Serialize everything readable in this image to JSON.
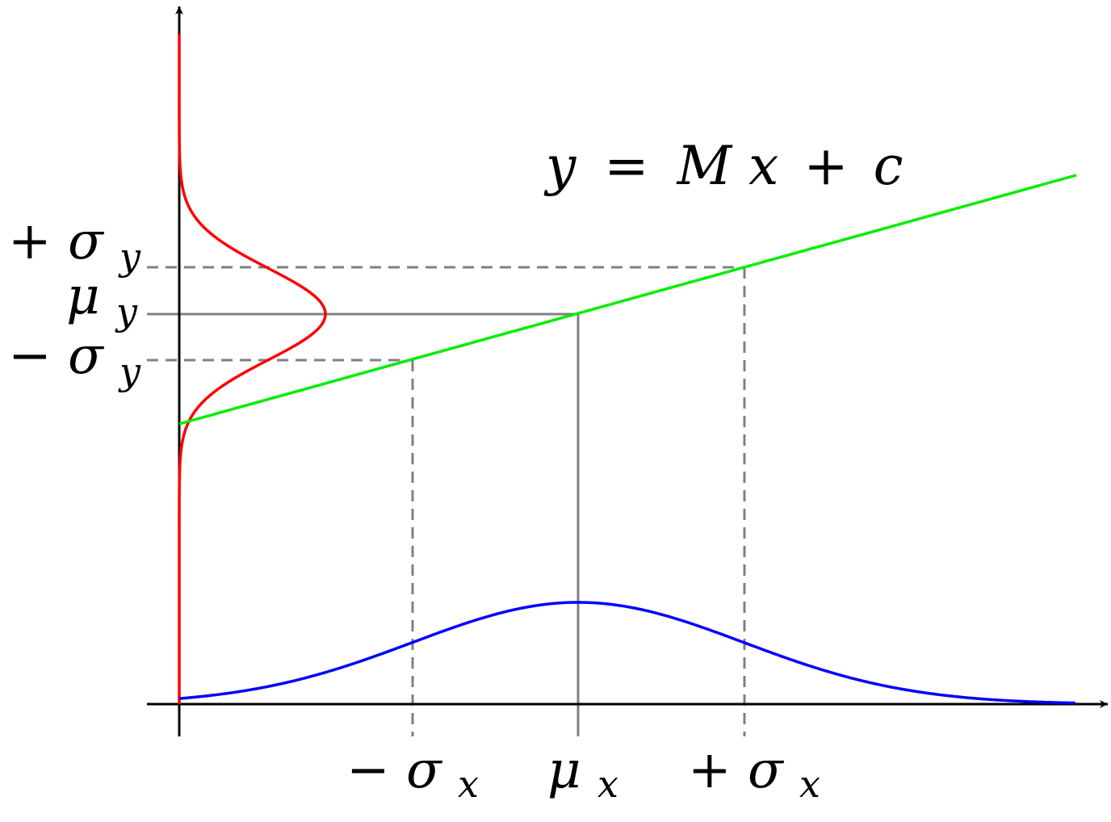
{
  "equation": {
    "y": "y",
    "equals": "=",
    "M": "M",
    "x": "x",
    "plus": "+",
    "c": "c"
  },
  "y_labels": {
    "plus_sigma": {
      "sign": "+",
      "sym": "σ",
      "sub": "y"
    },
    "mu": {
      "sign": "",
      "sym": "μ",
      "sub": "y"
    },
    "minus_sigma": {
      "sign": "−",
      "sym": "σ",
      "sub": "y"
    }
  },
  "x_labels": {
    "minus_sigma": {
      "sign": "−",
      "sym": "σ",
      "sub": "x"
    },
    "mu": {
      "sign": "",
      "sym": "μ",
      "sub": "x"
    },
    "plus_sigma": {
      "sign": "+",
      "sym": "σ",
      "sub": "x"
    }
  },
  "colors": {
    "axes": "#000000",
    "x_density": "#0000ff",
    "y_density": "#ff0000",
    "line": "#00ee00",
    "guide": "#808080"
  }
}
